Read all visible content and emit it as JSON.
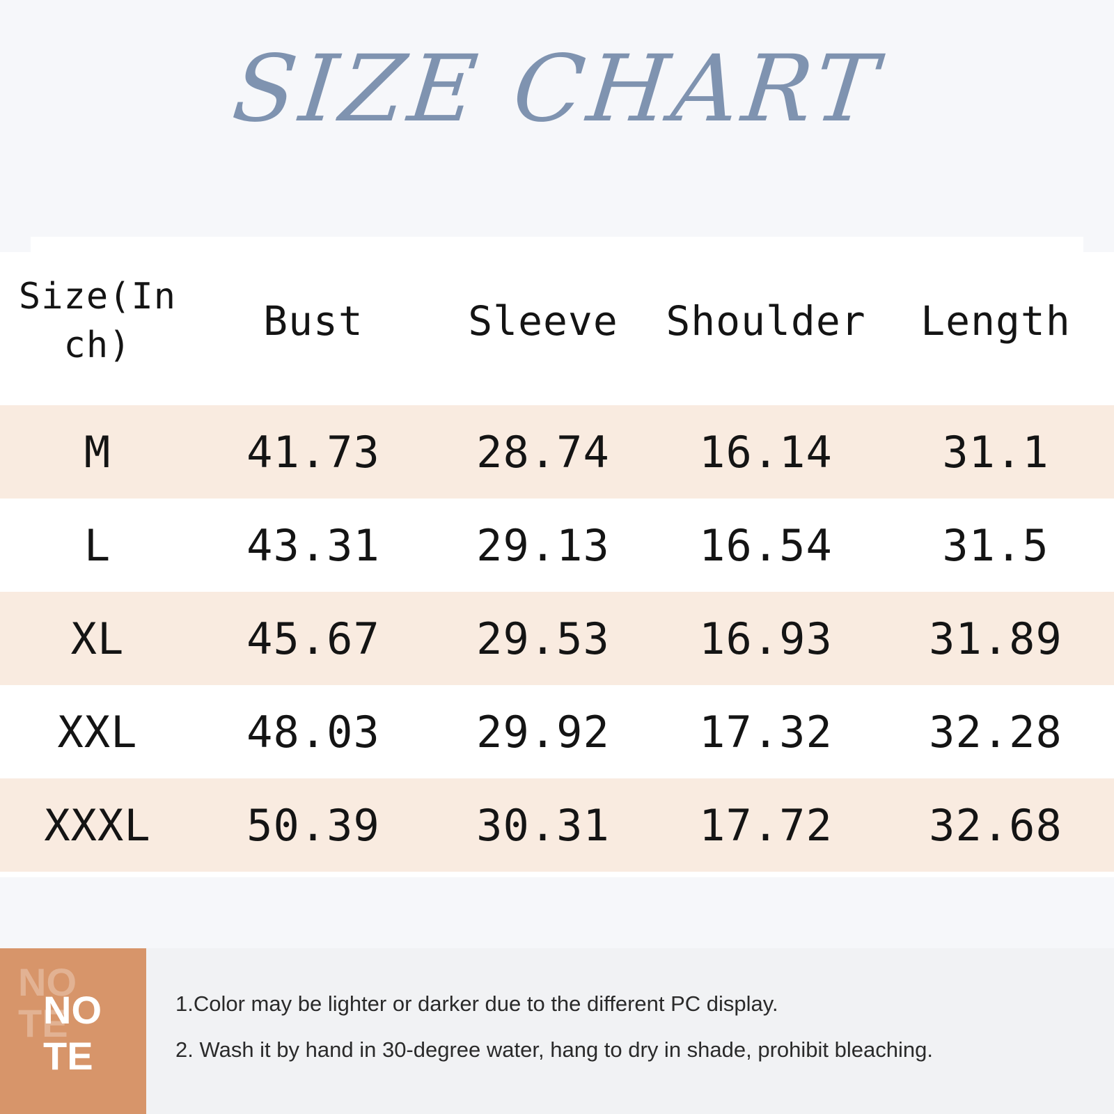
{
  "title": "SIZE CHART",
  "table": {
    "headers": [
      "Size(Inch)",
      "Bust",
      "Sleeve",
      "Shoulder",
      "Length"
    ],
    "rows": [
      [
        "M",
        "41.73",
        "28.74",
        "16.14",
        "31.1"
      ],
      [
        "L",
        "43.31",
        "29.13",
        "16.54",
        "31.5"
      ],
      [
        "XL",
        "45.67",
        "29.53",
        "16.93",
        "31.89"
      ],
      [
        "XXL",
        "48.03",
        "29.92",
        "17.32",
        "32.28"
      ],
      [
        "XXXL",
        "50.39",
        "30.31",
        "17.72",
        "32.68"
      ]
    ]
  },
  "note": {
    "label_line1": "NO",
    "label_line2": "TE",
    "items": [
      "1.Color may be lighter or darker due to the different PC display.",
      "2. Wash it by hand in 30-degree water, hang to dry in shade, prohibit bleaching."
    ]
  },
  "colors": {
    "title": "#7f93b0",
    "row_shade": "#f9ebe0",
    "note_accent": "#d7956a",
    "background": "#f6f7fa"
  }
}
